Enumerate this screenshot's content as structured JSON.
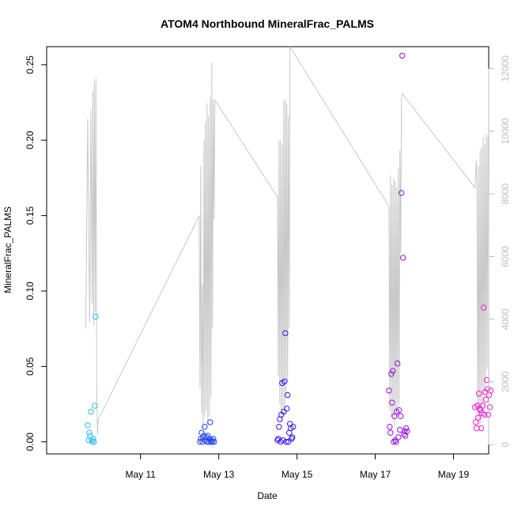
{
  "chart_data": {
    "type": "scatter",
    "title": "ATOM4 Northbound MineralFrac_PALMS",
    "xlabel": "Date",
    "ylabel": "MineralFrac_PALMS",
    "x_range_days": [
      8.6,
      19.9
    ],
    "ylim": [
      -0.008,
      0.262
    ],
    "y2lim": [
      -300,
      12700
    ],
    "left_ticks": [
      "0.00",
      "0.05",
      "0.10",
      "0.15",
      "0.20",
      "0.25"
    ],
    "right_ticks": [
      "0",
      "2000",
      "4000",
      "6000",
      "8000",
      "10000",
      "12000"
    ],
    "x_ticks": [
      {
        "label": "May 11",
        "value": 11
      },
      {
        "label": "May 13",
        "value": 13
      },
      {
        "label": "May 15",
        "value": 15
      },
      {
        "label": "May 17",
        "value": 17
      },
      {
        "label": "May 19",
        "value": 19
      }
    ],
    "series": [
      {
        "color": "#33bbee",
        "points": [
          [
            9.65,
            0.011
          ],
          [
            9.67,
            0.001
          ],
          [
            9.69,
            0.006
          ],
          [
            9.71,
            0.004
          ],
          [
            9.73,
            0.02
          ],
          [
            9.75,
            0.001
          ],
          [
            9.77,
            0.0
          ],
          [
            9.79,
            0.002
          ],
          [
            9.81,
            0.0
          ],
          [
            9.83,
            0.024
          ],
          [
            9.85,
            0.083
          ]
        ]
      },
      {
        "color": "#2244ee",
        "points": [
          [
            12.52,
            0.0
          ],
          [
            12.54,
            0.002
          ],
          [
            12.56,
            0.006
          ],
          [
            12.58,
            0.0
          ],
          [
            12.6,
            0.003
          ],
          [
            12.62,
            0.004
          ],
          [
            12.64,
            0.01
          ],
          [
            12.66,
            0.001
          ],
          [
            12.68,
            0.003
          ],
          [
            12.7,
            0.0
          ],
          [
            12.72,
            0.004
          ],
          [
            12.74,
            0.0
          ],
          [
            12.76,
            0.002
          ],
          [
            12.78,
            0.013
          ],
          [
            12.8,
            0.0
          ],
          [
            12.82,
            0.001
          ],
          [
            12.84,
            0.0
          ],
          [
            12.86,
            0.002
          ],
          [
            12.88,
            0.0
          ]
        ]
      },
      {
        "color": "#3311ee",
        "points": [
          [
            14.5,
            0.001
          ],
          [
            14.52,
            0.002
          ],
          [
            14.54,
            0.01
          ],
          [
            14.56,
            0.015
          ],
          [
            14.58,
            0.0
          ],
          [
            14.6,
            0.018
          ],
          [
            14.62,
            0.039
          ],
          [
            14.64,
            0.001
          ],
          [
            14.66,
            0.02
          ],
          [
            14.68,
            0.04
          ],
          [
            14.7,
            0.072
          ],
          [
            14.72,
            0.0
          ],
          [
            14.74,
            0.022
          ],
          [
            14.76,
            0.031
          ],
          [
            14.78,
            0.0
          ],
          [
            14.8,
            0.006
          ],
          [
            14.82,
            0.012
          ],
          [
            14.84,
            0.009
          ],
          [
            14.86,
            0.002
          ],
          [
            14.88,
            0.003
          ],
          [
            14.9,
            0.01
          ]
        ]
      },
      {
        "color": "#9911dd",
        "points": [
          [
            17.35,
            0.034
          ],
          [
            17.37,
            0.01
          ],
          [
            17.39,
            0.006
          ],
          [
            17.41,
            0.045
          ],
          [
            17.43,
            0.026
          ],
          [
            17.45,
            0.047
          ],
          [
            17.47,
            0.0
          ],
          [
            17.49,
            0.017
          ],
          [
            17.51,
            0.001
          ],
          [
            17.53,
            0.0
          ],
          [
            17.55,
            0.02
          ],
          [
            17.57,
            0.052
          ],
          [
            17.59,
            0.003
          ],
          [
            17.61,
            0.021
          ],
          [
            17.63,
            0.008
          ],
          [
            17.65,
            0.017
          ],
          [
            17.67,
            0.165
          ],
          [
            17.69,
            0.256
          ],
          [
            17.71,
            0.122
          ],
          [
            17.73,
            0.005
          ],
          [
            17.75,
            0.007
          ],
          [
            17.77,
            0.004
          ],
          [
            17.79,
            0.009
          ],
          [
            17.81,
            0.007
          ]
        ]
      },
      {
        "color": "#ee22cc",
        "points": [
          [
            19.55,
            0.023
          ],
          [
            19.57,
            0.013
          ],
          [
            19.59,
            0.009
          ],
          [
            19.61,
            0.024
          ],
          [
            19.63,
            0.016
          ],
          [
            19.65,
            0.032
          ],
          [
            19.67,
            0.022
          ],
          [
            19.69,
            0.021
          ],
          [
            19.71,
            0.009
          ],
          [
            19.73,
            0.019
          ],
          [
            19.75,
            0.024
          ],
          [
            19.77,
            0.089
          ],
          [
            19.79,
            0.018
          ],
          [
            19.81,
            0.033
          ],
          [
            19.83,
            0.028
          ],
          [
            19.85,
            0.041
          ],
          [
            19.87,
            0.035
          ],
          [
            19.89,
            0.018
          ],
          [
            19.91,
            0.031
          ],
          [
            19.93,
            0.023
          ],
          [
            19.95,
            0.034
          ]
        ]
      }
    ],
    "secondary_line": {
      "color": "#c8c8c8",
      "points": [
        [
          9.6,
          3700
        ],
        [
          9.65,
          10400
        ],
        [
          9.7,
          3900
        ],
        [
          9.73,
          10700
        ],
        [
          9.76,
          4500
        ],
        [
          9.78,
          11300
        ],
        [
          9.8,
          3800
        ],
        [
          9.82,
          11600
        ],
        [
          9.84,
          4200
        ],
        [
          9.86,
          11700
        ],
        [
          9.88,
          1900
        ],
        [
          9.9,
          300
        ],
        [
          9.92,
          800
        ],
        [
          12.5,
          7300
        ],
        [
          12.52,
          1800
        ],
        [
          12.54,
          8900
        ],
        [
          12.56,
          1000
        ],
        [
          12.58,
          5100
        ],
        [
          12.6,
          500
        ],
        [
          12.62,
          9700
        ],
        [
          12.64,
          900
        ],
        [
          12.66,
          10300
        ],
        [
          12.68,
          1100
        ],
        [
          12.7,
          10900
        ],
        [
          12.72,
          600
        ],
        [
          12.74,
          10500
        ],
        [
          12.76,
          900
        ],
        [
          12.78,
          11100
        ],
        [
          12.8,
          1500
        ],
        [
          12.82,
          12200
        ],
        [
          12.84,
          3700
        ],
        [
          12.86,
          11000
        ],
        [
          12.88,
          7200
        ],
        [
          12.9,
          11000
        ],
        [
          14.5,
          7900
        ],
        [
          14.52,
          2200
        ],
        [
          14.54,
          9700
        ],
        [
          14.56,
          1300
        ],
        [
          14.58,
          9700
        ],
        [
          14.6,
          800
        ],
        [
          14.62,
          9600
        ],
        [
          14.64,
          1200
        ],
        [
          14.66,
          11000
        ],
        [
          14.68,
          1000
        ],
        [
          14.7,
          11000
        ],
        [
          14.72,
          1600
        ],
        [
          14.74,
          10900
        ],
        [
          14.76,
          2000
        ],
        [
          14.78,
          10500
        ],
        [
          14.8,
          3700
        ],
        [
          14.82,
          12700
        ],
        [
          17.35,
          7600
        ],
        [
          17.37,
          1100
        ],
        [
          17.39,
          8600
        ],
        [
          17.41,
          900
        ],
        [
          17.43,
          8300
        ],
        [
          17.45,
          800
        ],
        [
          17.47,
          8500
        ],
        [
          17.49,
          600
        ],
        [
          17.51,
          8400
        ],
        [
          17.53,
          900
        ],
        [
          17.55,
          8200
        ],
        [
          17.57,
          1100
        ],
        [
          17.59,
          8800
        ],
        [
          17.61,
          1300
        ],
        [
          17.63,
          9400
        ],
        [
          17.65,
          6100
        ],
        [
          17.67,
          11000
        ],
        [
          17.69,
          11200
        ],
        [
          19.55,
          8200
        ],
        [
          19.58,
          9100
        ],
        [
          19.6,
          8300
        ],
        [
          19.62,
          800
        ],
        [
          19.64,
          8900
        ],
        [
          19.66,
          500
        ],
        [
          19.68,
          9400
        ],
        [
          19.7,
          700
        ],
        [
          19.72,
          9500
        ],
        [
          19.74,
          1200
        ],
        [
          19.76,
          9800
        ],
        [
          19.78,
          1100
        ],
        [
          19.8,
          9600
        ],
        [
          19.82,
          1900
        ],
        [
          19.84,
          9900
        ],
        [
          19.86,
          2400
        ],
        [
          19.88,
          9800
        ]
      ]
    }
  }
}
